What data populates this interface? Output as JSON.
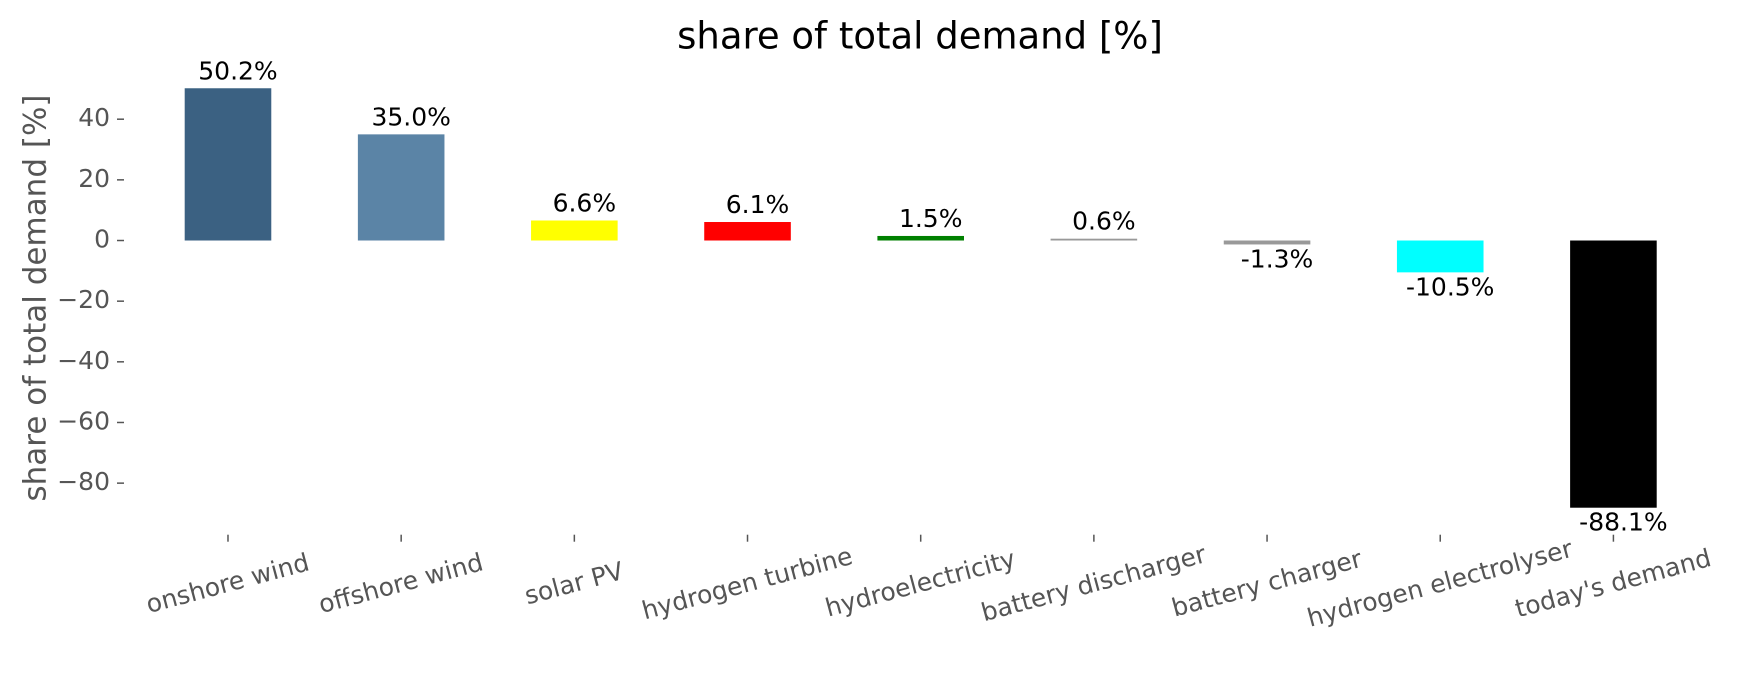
{
  "chart_data": {
    "type": "bar",
    "title": "share of total demand [%]",
    "y_label": "share of total demand [%]",
    "categories": [
      "onshore wind",
      "offshore wind",
      "solar PV",
      "hydrogen turbine",
      "hydroelectricity",
      "battery discharger",
      "battery charger",
      "hydrogen electrolyser",
      "today's demand"
    ],
    "values": [
      50.2,
      35.0,
      6.6,
      6.1,
      1.5,
      0.6,
      -1.3,
      -10.5,
      -88.1
    ],
    "value_labels": [
      "50.2%",
      "35.0%",
      "6.6%",
      "6.1%",
      "1.5%",
      "0.6%",
      "-1.3%",
      "-10.5%",
      "-88.1%"
    ],
    "colors": [
      "#3b6182",
      "#5b84a6",
      "#ffff00",
      "#ff0000",
      "#008000",
      "#999999",
      "#999999",
      "#00ffff",
      "#000000"
    ],
    "ylim": [
      -97,
      55
    ],
    "yticks": [
      {
        "value": -80,
        "label": "−80"
      },
      {
        "value": -60,
        "label": "−60"
      },
      {
        "value": -40,
        "label": "−40"
      },
      {
        "value": -20,
        "label": "−20"
      },
      0,
      20,
      40
    ],
    "grid": false
  }
}
